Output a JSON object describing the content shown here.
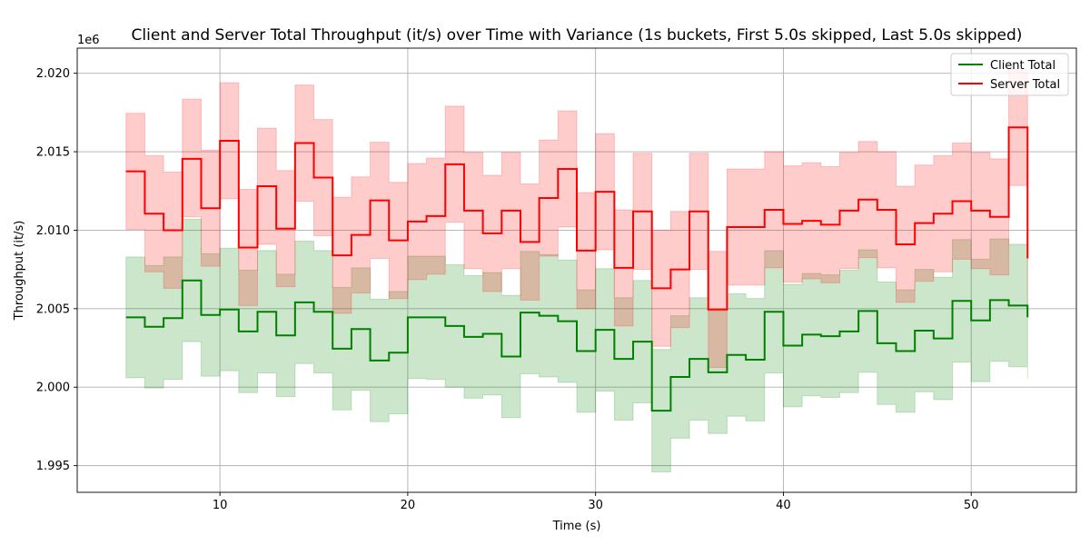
{
  "chart_data": {
    "type": "line",
    "step": "post",
    "title": "Client and Server Total Throughput (it/s) over Time with Variance (1s buckets, First 5.0s skipped, Last 5.0s skipped)",
    "xlabel": "Time (s)",
    "ylabel": "Throughput (it/s)",
    "y_offset_label": "1e6",
    "xlim": [
      2.4,
      55.6
    ],
    "ylim": [
      1993300,
      2021600
    ],
    "x_ticks": [
      10,
      20,
      30,
      40,
      50
    ],
    "x_tick_labels": [
      "10",
      "20",
      "30",
      "40",
      "50"
    ],
    "y_ticks": [
      1995000,
      2000000,
      2005000,
      2010000,
      2015000,
      2020000
    ],
    "y_tick_labels": [
      "1.995",
      "2.000",
      "2.005",
      "2.010",
      "2.015",
      "2.020"
    ],
    "grid": true,
    "legend_position": "top-right",
    "x": [
      5,
      6,
      7,
      8,
      9,
      10,
      11,
      12,
      13,
      14,
      15,
      16,
      17,
      18,
      19,
      20,
      21,
      22,
      23,
      24,
      25,
      26,
      27,
      28,
      29,
      30,
      31,
      32,
      33,
      34,
      35,
      36,
      37,
      38,
      39,
      40,
      41,
      42,
      43,
      44,
      45,
      46,
      47,
      48,
      49,
      50,
      51,
      52,
      53
    ],
    "series": [
      {
        "name": "Client Total",
        "color": "#008000",
        "band_color": "#008000",
        "values": [
          2004450,
          2003850,
          2004400,
          2006800,
          2004600,
          2004950,
          2003550,
          2004800,
          2003300,
          2005400,
          2004800,
          2002450,
          2003700,
          2001700,
          2002200,
          2004450,
          2004450,
          2003900,
          2003200,
          2003400,
          2001950,
          2004750,
          2004550,
          2004200,
          2002300,
          2003650,
          2001800,
          2002900,
          1998500,
          2000650,
          2001800,
          2000950,
          2002050,
          2001750,
          2004800,
          2002650,
          2003350,
          2003250,
          2003550,
          2004850,
          2002800,
          2002300,
          2003600,
          2003100,
          2005500,
          2004250,
          2005550,
          2005200,
          2004450
        ],
        "lower": [
          2000600,
          1999950,
          2000500,
          2002900,
          2000700,
          2001050,
          1999650,
          2000900,
          1999400,
          2001500,
          2000900,
          1998550,
          1999800,
          1997800,
          1998300,
          2000550,
          2000500,
          2000000,
          1999300,
          1999500,
          1998050,
          2000850,
          2000650,
          2000300,
          1998400,
          1999750,
          1997900,
          1999000,
          1994600,
          1996750,
          1997900,
          1997050,
          1998150,
          1997850,
          2000900,
          1998750,
          1999450,
          1999350,
          1999650,
          2000950,
          1998900,
          1998400,
          1999700,
          1999200,
          2001600,
          2000350,
          2001650,
          2001300,
          2000550
        ],
        "upper": [
          2008300,
          2007750,
          2008300,
          2010700,
          2008500,
          2008850,
          2007450,
          2008700,
          2007200,
          2009300,
          2008700,
          2006350,
          2007600,
          2005600,
          2006100,
          2008350,
          2008350,
          2007800,
          2007100,
          2007300,
          2005850,
          2008650,
          2008450,
          2008100,
          2006200,
          2007550,
          2005700,
          2006800,
          2002400,
          2004550,
          2005700,
          2004850,
          2005950,
          2005650,
          2008700,
          2006550,
          2007250,
          2007150,
          2007450,
          2008750,
          2006700,
          2006200,
          2007500,
          2007000,
          2009400,
          2008150,
          2009450,
          2009100,
          2008350
        ]
      },
      {
        "name": "Server Total",
        "color": "#ff0000",
        "band_color": "#ff0000",
        "values": [
          2013750,
          2011050,
          2010000,
          2014550,
          2011400,
          2015700,
          2008900,
          2012800,
          2010100,
          2015550,
          2013350,
          2008400,
          2009700,
          2011900,
          2009350,
          2010550,
          2010900,
          2014200,
          2011250,
          2009800,
          2011250,
          2009250,
          2012050,
          2013900,
          2008700,
          2012450,
          2007600,
          2011200,
          2006300,
          2007500,
          2011200,
          2004950,
          2010200,
          2010200,
          2011300,
          2010400,
          2010600,
          2010350,
          2011250,
          2011950,
          2011300,
          2009100,
          2010450,
          2011050,
          2011850,
          2011250,
          2010850,
          2016550,
          2008200
        ],
        "lower": [
          2010050,
          2007350,
          2006300,
          2010850,
          2007700,
          2012000,
          2005200,
          2009100,
          2006400,
          2011850,
          2009650,
          2004700,
          2006000,
          2008200,
          2005650,
          2006850,
          2007200,
          2010500,
          2007550,
          2006100,
          2007550,
          2005550,
          2008350,
          2010200,
          2005000,
          2008750,
          2003900,
          2007500,
          2002600,
          2003800,
          2007500,
          2001250,
          2006500,
          2006500,
          2007600,
          2006700,
          2006900,
          2006650,
          2007550,
          2008250,
          2007600,
          2005400,
          2006750,
          2007350,
          2008150,
          2007550,
          2007150,
          2012850,
          2004500
        ],
        "upper": [
          2017450,
          2014750,
          2013700,
          2018350,
          2015100,
          2019400,
          2012600,
          2016500,
          2013800,
          2019250,
          2017050,
          2012100,
          2013400,
          2015600,
          2013050,
          2014250,
          2014600,
          2017900,
          2014950,
          2013500,
          2014950,
          2012950,
          2015750,
          2017600,
          2012400,
          2016150,
          2011300,
          2014900,
          2010000,
          2011200,
          2014900,
          2008650,
          2013900,
          2013900,
          2015000,
          2014100,
          2014300,
          2014050,
          2014950,
          2015650,
          2015000,
          2012800,
          2014150,
          2014750,
          2015550,
          2014950,
          2014550,
          2020250,
          2011900
        ]
      }
    ]
  }
}
